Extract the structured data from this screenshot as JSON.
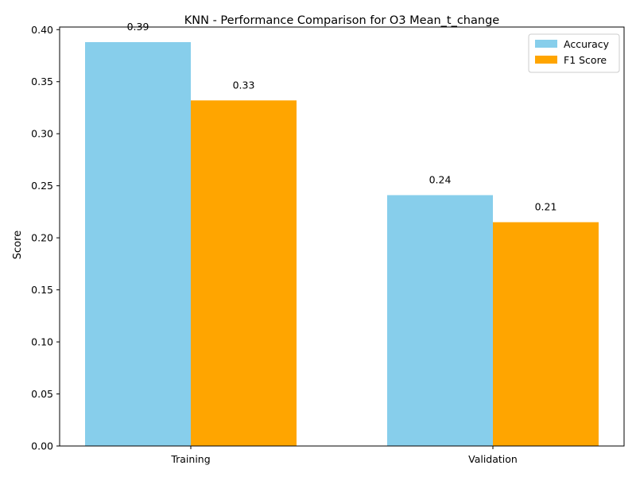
{
  "chart_data": {
    "type": "bar",
    "title": "KNN - Performance Comparison for O3 Mean_t_change",
    "xlabel": "",
    "ylabel": "Score",
    "categories": [
      "Training",
      "Validation"
    ],
    "series": [
      {
        "name": "Accuracy",
        "color": "#87ceeb",
        "values": [
          0.388,
          0.241
        ],
        "labels": [
          "0.39",
          "0.24"
        ]
      },
      {
        "name": "F1 Score",
        "color": "#ffa500",
        "values": [
          0.332,
          0.215
        ],
        "labels": [
          "0.33",
          "0.21"
        ]
      }
    ],
    "ylim": [
      0,
      0.4025
    ],
    "yticks": [
      "0.00",
      "0.05",
      "0.10",
      "0.15",
      "0.20",
      "0.25",
      "0.30",
      "0.35",
      "0.40"
    ],
    "grid": false,
    "legend_position": "top-right"
  }
}
